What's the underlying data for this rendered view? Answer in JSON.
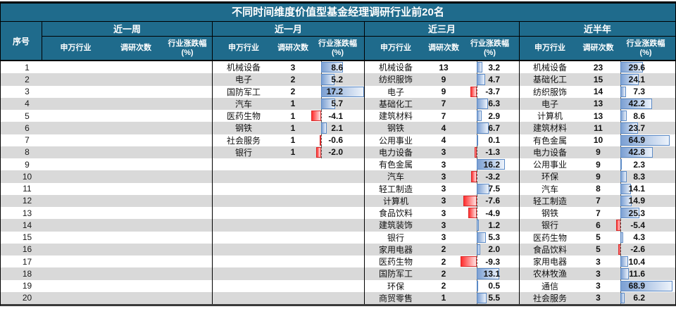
{
  "header": {
    "index_label": "序号",
    "sub_columns": [
      "申万行业",
      "调研次数",
      "行业涨跌幅",
      "(%)"
    ]
  },
  "colors": {
    "header_bg": "#1F6B8C",
    "stripe": "#D9D9D9",
    "bar_positive": "#7CA0D3",
    "bar_positive_border": "#5B8AC6",
    "bar_negative": "#FF2D2D",
    "bar_negative_border": "#D92B2B",
    "border": "#000000"
  },
  "chart_data": {
    "type": "table",
    "title": "不同时间维度价值型基金经理调研行业前20名",
    "row_count": 20,
    "row_numbers": [
      1,
      2,
      3,
      4,
      5,
      6,
      7,
      8,
      9,
      10,
      11,
      12,
      13,
      14,
      15,
      16,
      17,
      18,
      19,
      20
    ],
    "groups": [
      {
        "label": "近一周",
        "rows": []
      },
      {
        "label": "近一月",
        "rows": [
          {
            "industry": "机械设备",
            "count": 3,
            "pct": 8.6
          },
          {
            "industry": "电子",
            "count": 2,
            "pct": 5.2
          },
          {
            "industry": "国防军工",
            "count": 2,
            "pct": 17.2
          },
          {
            "industry": "汽车",
            "count": 1,
            "pct": 5.7
          },
          {
            "industry": "医药生物",
            "count": 1,
            "pct": -4.1
          },
          {
            "industry": "钢铁",
            "count": 1,
            "pct": 2.1
          },
          {
            "industry": "社会服务",
            "count": 1,
            "pct": -0.6
          },
          {
            "industry": "银行",
            "count": 1,
            "pct": -2.0
          }
        ]
      },
      {
        "label": "近三月",
        "rows": [
          {
            "industry": "机械设备",
            "count": 13,
            "pct": 3.2
          },
          {
            "industry": "纺织服饰",
            "count": 9,
            "pct": 4.7
          },
          {
            "industry": "电子",
            "count": 9,
            "pct": -3.7
          },
          {
            "industry": "基础化工",
            "count": 7,
            "pct": 6.3
          },
          {
            "industry": "建筑材料",
            "count": 7,
            "pct": 2.9
          },
          {
            "industry": "钢铁",
            "count": 4,
            "pct": 6.7
          },
          {
            "industry": "公用事业",
            "count": 4,
            "pct": 0.1
          },
          {
            "industry": "电力设备",
            "count": 3,
            "pct": -1.3
          },
          {
            "industry": "有色金属",
            "count": 3,
            "pct": 16.2
          },
          {
            "industry": "汽车",
            "count": 3,
            "pct": -3.2
          },
          {
            "industry": "轻工制造",
            "count": 3,
            "pct": 7.5
          },
          {
            "industry": "计算机",
            "count": 3,
            "pct": -7.6
          },
          {
            "industry": "食品饮料",
            "count": 3,
            "pct": -4.9
          },
          {
            "industry": "建筑装饰",
            "count": 3,
            "pct": 1.2
          },
          {
            "industry": "银行",
            "count": 3,
            "pct": 5.3
          },
          {
            "industry": "家用电器",
            "count": 2,
            "pct": 2.0
          },
          {
            "industry": "医药生物",
            "count": 2,
            "pct": -9.3
          },
          {
            "industry": "国防军工",
            "count": 2,
            "pct": 13.1
          },
          {
            "industry": "环保",
            "count": 2,
            "pct": 0.5
          },
          {
            "industry": "商贸零售",
            "count": 1,
            "pct": 5.5
          }
        ]
      },
      {
        "label": "近半年",
        "rows": [
          {
            "industry": "机械设备",
            "count": 23,
            "pct": 29.6
          },
          {
            "industry": "基础化工",
            "count": 15,
            "pct": 24.1
          },
          {
            "industry": "纺织服饰",
            "count": 14,
            "pct": 7.3
          },
          {
            "industry": "电子",
            "count": 13,
            "pct": 42.2
          },
          {
            "industry": "计算机",
            "count": 13,
            "pct": 8.6
          },
          {
            "industry": "建筑材料",
            "count": 11,
            "pct": 23.7
          },
          {
            "industry": "有色金属",
            "count": 10,
            "pct": 64.9
          },
          {
            "industry": "电力设备",
            "count": 9,
            "pct": 42.8
          },
          {
            "industry": "公用事业",
            "count": 9,
            "pct": 2.3
          },
          {
            "industry": "环保",
            "count": 9,
            "pct": 8.3
          },
          {
            "industry": "汽车",
            "count": 8,
            "pct": 14.1
          },
          {
            "industry": "轻工制造",
            "count": 7,
            "pct": 14.9
          },
          {
            "industry": "钢铁",
            "count": 7,
            "pct": 25.3
          },
          {
            "industry": "银行",
            "count": 6,
            "pct": -5.4
          },
          {
            "industry": "医药生物",
            "count": 5,
            "pct": 4.3
          },
          {
            "industry": "食品饮料",
            "count": 5,
            "pct": -2.6
          },
          {
            "industry": "家用电器",
            "count": 3,
            "pct": 10.4
          },
          {
            "industry": "农林牧渔",
            "count": 3,
            "pct": 11.6
          },
          {
            "industry": "通信",
            "count": 3,
            "pct": 68.9
          },
          {
            "industry": "社会服务",
            "count": 3,
            "pct": 6.2
          }
        ]
      }
    ]
  }
}
